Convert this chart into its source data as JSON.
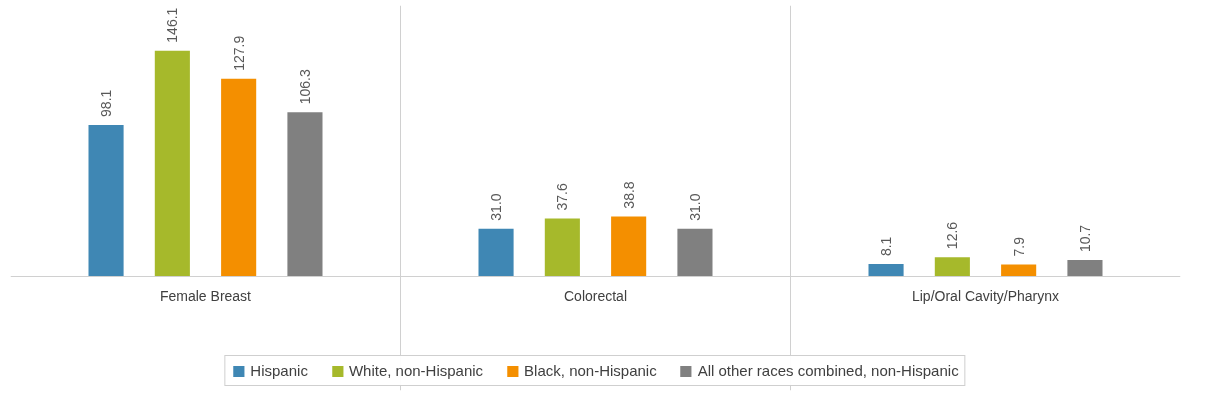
{
  "chart_data": {
    "type": "bar",
    "categories": [
      "Female Breast",
      "Colorectal",
      "Lip/Oral Cavity/Pharynx"
    ],
    "series": [
      {
        "name": "Hispanic",
        "color": "#3f87b4",
        "values": [
          98.1,
          31.0,
          8.1
        ],
        "value_labels": [
          "98.1",
          "31.0",
          "8.1"
        ]
      },
      {
        "name": "White, non-Hispanic",
        "color": "#a6b92b",
        "values": [
          146.1,
          37.6,
          12.6
        ],
        "value_labels": [
          "146.1",
          "37.6",
          "12.6"
        ]
      },
      {
        "name": "Black, non-Hispanic",
        "color": "#f48f00",
        "values": [
          127.9,
          38.8,
          7.9
        ],
        "value_labels": [
          "127.9",
          "38.8",
          "7.9"
        ]
      },
      {
        "name": "All other races combined, non-Hispanic",
        "color": "#808080",
        "values": [
          106.3,
          31.0,
          10.7
        ],
        "value_labels": [
          "106.3",
          "31.0",
          "10.7"
        ]
      }
    ],
    "data_labels": true,
    "grid": "x",
    "legend": "bottom"
  }
}
